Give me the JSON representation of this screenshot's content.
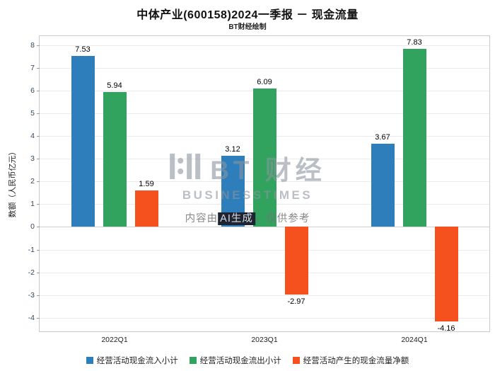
{
  "header": {
    "title": "中体产业(600158)2024一季报 － 现金流量",
    "subtitle": "BT财经绘制"
  },
  "watermark": {
    "logo_text": "BT 财经",
    "logo_subtext": "BUSINESSTIMES",
    "ai_prefix": "内容由",
    "ai_highlight": "AI生成",
    "ai_suffix": "，仅供参考"
  },
  "chart_data": {
    "type": "bar",
    "title": "中体产业(600158)2024一季报 － 现金流量",
    "categories": [
      "2022Q1",
      "2023Q1",
      "2024Q1"
    ],
    "series": [
      {
        "name": "经营活动现金流入小计",
        "color": "#2E7EBB",
        "values": [
          7.53,
          3.12,
          3.67
        ]
      },
      {
        "name": "经营活动现金流出小计",
        "color": "#31A35F",
        "values": [
          5.94,
          6.09,
          7.83
        ]
      },
      {
        "name": "经营活动产生的现金流量净额",
        "color": "#F4511E",
        "values": [
          1.59,
          -2.97,
          -4.16
        ]
      }
    ],
    "xlabel": "",
    "ylabel": "数额（人民币亿元）",
    "ylim": [
      -4.6,
      8.4
    ],
    "yticks": [
      -4,
      -3,
      -2,
      -1,
      0,
      1,
      2,
      3,
      4,
      5,
      6,
      7,
      8
    ],
    "grid": true,
    "legend_position": "bottom"
  }
}
